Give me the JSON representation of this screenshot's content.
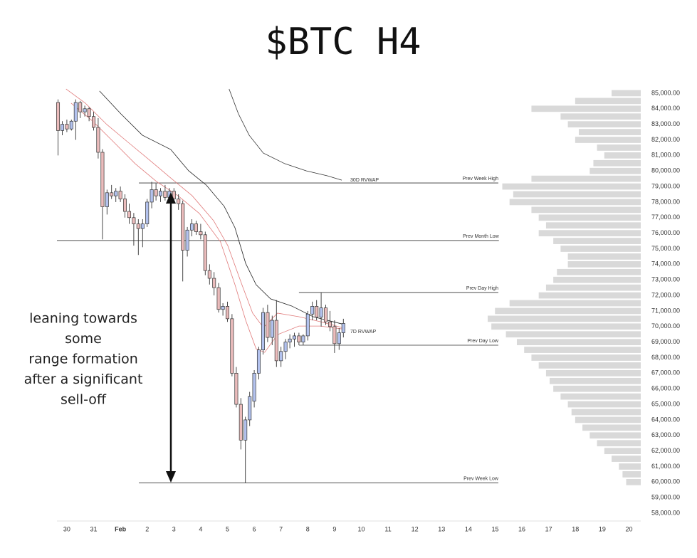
{
  "chart_data": {
    "type": "candlestick",
    "title": "$BTC H4",
    "annotation": [
      "leaning towards",
      "some",
      "range formation",
      "after a significant",
      "sell-off"
    ],
    "up_color": "#b3c2ee",
    "down_color": "#ebbcbc",
    "xlim": [
      -0.37,
      21.44
    ],
    "ylim": [
      57500,
      85500
    ],
    "xticks": [
      {
        "value": 0,
        "label": "30"
      },
      {
        "value": 1,
        "label": "31"
      },
      {
        "value": 2,
        "label": "Feb"
      },
      {
        "value": 3,
        "label": "2"
      },
      {
        "value": 4,
        "label": "3"
      },
      {
        "value": 5,
        "label": "4"
      },
      {
        "value": 6,
        "label": "5"
      },
      {
        "value": 7,
        "label": "6"
      },
      {
        "value": 8,
        "label": "7"
      },
      {
        "value": 9,
        "label": "8"
      },
      {
        "value": 10,
        "label": "9"
      },
      {
        "value": 11,
        "label": "10"
      },
      {
        "value": 12,
        "label": "11"
      },
      {
        "value": 13,
        "label": "12"
      },
      {
        "value": 14,
        "label": "13"
      },
      {
        "value": 15,
        "label": "14"
      },
      {
        "value": 16,
        "label": "15"
      },
      {
        "value": 17,
        "label": "16"
      },
      {
        "value": 18,
        "label": "17"
      },
      {
        "value": 19,
        "label": "18"
      },
      {
        "value": 20,
        "label": "19"
      },
      {
        "value": 21,
        "label": "20"
      }
    ],
    "yticks": [
      {
        "value": 85000,
        "label": "85,000.00"
      },
      {
        "value": 84000,
        "label": "84,000.00"
      },
      {
        "value": 83000,
        "label": "83,000.00"
      },
      {
        "value": 82000,
        "label": "82,000.00"
      },
      {
        "value": 81000,
        "label": "81,000.00"
      },
      {
        "value": 80000,
        "label": "80,000.00"
      },
      {
        "value": 79000,
        "label": "79,000.00"
      },
      {
        "value": 78000,
        "label": "78,000.00"
      },
      {
        "value": 77000,
        "label": "77,000.00"
      },
      {
        "value": 76000,
        "label": "76,000.00"
      },
      {
        "value": 75000,
        "label": "75,000.00"
      },
      {
        "value": 74000,
        "label": "74,000.00"
      },
      {
        "value": 73000,
        "label": "73,000.00"
      },
      {
        "value": 72000,
        "label": "72,000.00"
      },
      {
        "value": 71000,
        "label": "71,000.00"
      },
      {
        "value": 70000,
        "label": "70,000.00"
      },
      {
        "value": 69000,
        "label": "69,000.00"
      },
      {
        "value": 68000,
        "label": "68,000.00"
      },
      {
        "value": 67000,
        "label": "67,000.00"
      },
      {
        "value": 66000,
        "label": "66,000.00"
      },
      {
        "value": 65000,
        "label": "65,000.00"
      },
      {
        "value": 64000,
        "label": "64,000.00"
      },
      {
        "value": 63000,
        "label": "63,000.00"
      },
      {
        "value": 62000,
        "label": "62,000.00"
      },
      {
        "value": 61000,
        "label": "61,000.00"
      },
      {
        "value": 60000,
        "label": "60,000.00"
      },
      {
        "value": 59000,
        "label": "59,000.00"
      },
      {
        "value": 58000,
        "label": "58,000.00"
      }
    ],
    "x": [
      -0.33,
      -0.17,
      0,
      0.17,
      0.33,
      0.5,
      0.67,
      0.83,
      1,
      1.17,
      1.33,
      1.5,
      1.67,
      1.83,
      2,
      2.17,
      2.33,
      2.5,
      2.67,
      2.83,
      3,
      3.17,
      3.33,
      3.5,
      3.67,
      3.83,
      4,
      4.17,
      4.33,
      4.5,
      4.67,
      4.83,
      5,
      5.17,
      5.33,
      5.5,
      5.67,
      5.83,
      6,
      6.17,
      6.33,
      6.5,
      6.67,
      6.83,
      7,
      7.17,
      7.33,
      7.5,
      7.67,
      7.83,
      8,
      8.17,
      8.33,
      8.5,
      8.67,
      8.83,
      9,
      9.17,
      9.33,
      9.5,
      9.67,
      9.83,
      10,
      10.17,
      10.33
    ],
    "open": [
      84400,
      82600,
      83000,
      82700,
      83200,
      84400,
      83800,
      84000,
      83500,
      82800,
      81200,
      77700,
      78600,
      78400,
      78700,
      78200,
      77400,
      77000,
      76600,
      76300,
      76600,
      78000,
      78800,
      78400,
      78700,
      78300,
      78700,
      78200,
      77900,
      74900,
      76200,
      76600,
      76100,
      75900,
      73600,
      73100,
      72500,
      71100,
      71300,
      70500,
      67000,
      65000,
      62700,
      64000,
      65200,
      67000,
      68500,
      70900,
      69300,
      70400,
      67800,
      68400,
      69000,
      69200,
      69400,
      69000,
      69400,
      70800,
      71300,
      70600,
      71200,
      70300,
      70000,
      68900,
      69600
    ],
    "high": [
      84600,
      83200,
      83300,
      83300,
      84600,
      84500,
      84200,
      84100,
      83800,
      83400,
      81400,
      78800,
      79100,
      78900,
      79000,
      78500,
      77900,
      77300,
      76900,
      76900,
      78200,
      79300,
      79200,
      78900,
      79100,
      78900,
      78900,
      78500,
      78100,
      76400,
      76900,
      76800,
      76600,
      76100,
      74000,
      73500,
      72800,
      71500,
      71600,
      70800,
      67400,
      65400,
      64200,
      65800,
      67200,
      68700,
      71200,
      71400,
      70700,
      71700,
      68700,
      69200,
      69500,
      69600,
      69600,
      69500,
      71000,
      71600,
      71700,
      72200,
      71400,
      71000,
      70400,
      69900,
      70500
    ],
    "low": [
      81000,
      82300,
      82500,
      82600,
      82000,
      83400,
      83500,
      83200,
      82600,
      80800,
      75600,
      77200,
      78200,
      78000,
      78000,
      77000,
      76600,
      75200,
      74600,
      75100,
      76400,
      77600,
      78100,
      78000,
      78100,
      78000,
      77900,
      77500,
      72900,
      74500,
      75800,
      75900,
      75600,
      73300,
      72700,
      72000,
      70900,
      70700,
      70300,
      66800,
      64800,
      62100,
      59950,
      63600,
      64800,
      66600,
      68200,
      69000,
      68800,
      67400,
      67400,
      67900,
      68600,
      68700,
      68800,
      68800,
      69100,
      70400,
      70400,
      70000,
      70100,
      69700,
      68300,
      68500,
      69300
    ],
    "close": [
      82600,
      83000,
      82700,
      83200,
      84400,
      83800,
      84000,
      83500,
      82800,
      81200,
      77700,
      78600,
      78400,
      78700,
      78200,
      77400,
      77000,
      76600,
      76300,
      76600,
      78000,
      78800,
      78400,
      78700,
      78300,
      78700,
      78200,
      77900,
      74900,
      76200,
      76600,
      76100,
      75900,
      73600,
      73100,
      72500,
      71100,
      71300,
      70500,
      67000,
      65000,
      62700,
      64000,
      65500,
      67000,
      68500,
      70900,
      69300,
      70400,
      67800,
      68400,
      69000,
      69200,
      69400,
      69000,
      69400,
      70800,
      71300,
      70600,
      71200,
      70300,
      70000,
      68900,
      69600,
      70200
    ],
    "lines": [
      {
        "name": "30D RVWAP",
        "color": "#333333",
        "x": [
          6.06,
          6.41,
          6.81,
          7.34,
          8.14,
          8.94,
          9.73,
          10.27
        ],
        "values": [
          85270,
          83670,
          82300,
          81150,
          80470,
          80010,
          79690,
          79410
        ]
      },
      {
        "color": "#222222",
        "x": [
          1.22,
          2.02,
          2.82,
          3.88,
          4.55,
          5.21,
          5.88,
          6.28,
          6.68,
          7.07,
          7.61,
          8.4,
          9.2,
          10.27
        ],
        "values": [
          85140,
          83670,
          82300,
          81380,
          80010,
          79090,
          77720,
          76350,
          74060,
          72690,
          71780,
          71320,
          70630,
          70170
        ]
      },
      {
        "name": "7D RVWAP",
        "color": "#e07a7a",
        "x": [
          -0.03,
          0.69,
          1.49,
          2.29,
          3.09,
          3.88,
          4.68,
          5.48,
          6.01,
          6.54,
          6.94,
          7.34,
          7.87,
          8.67,
          9.47,
          10.27
        ],
        "values": [
          85270,
          84360,
          82990,
          81840,
          80700,
          79550,
          78410,
          76810,
          75210,
          72690,
          70860,
          69940,
          70860,
          70630,
          70310,
          69940
        ]
      },
      {
        "color": "#e07a7a",
        "x": [
          0.16,
          0.96,
          1.76,
          2.55,
          3.35,
          4.15,
          4.95,
          5.74,
          6.28,
          6.68,
          7.07,
          7.39,
          7.87,
          8.67,
          9.47,
          10.27
        ],
        "values": [
          84360,
          83210,
          81840,
          80470,
          79320,
          78410,
          77270,
          75440,
          72690,
          70400,
          68570,
          68340,
          69480,
          70030,
          70030,
          69850
        ]
      }
    ],
    "levels": [
      {
        "label": "Prev Week High",
        "value": 79230,
        "x": [
          2.69,
          16.12
        ]
      },
      {
        "label": "Prev Month Low",
        "value": 75530,
        "x": [
          -0.37,
          16.14
        ]
      },
      {
        "label": "Prev Day High",
        "value": 72190,
        "x": [
          8.67,
          16.12
        ]
      },
      {
        "label": "Prev Day Low",
        "value": 68800,
        "x": [
          8.67,
          16.12
        ]
      },
      {
        "label": "Prev Week Low",
        "value": 59950,
        "x": [
          2.69,
          16.12
        ]
      }
    ],
    "volume_profile": {
      "prices": [
        85000,
        84500,
        84000,
        83500,
        83000,
        82500,
        82000,
        81500,
        81000,
        80500,
        80000,
        79500,
        79000,
        78500,
        78000,
        77500,
        77000,
        76500,
        76000,
        75500,
        75000,
        74500,
        74000,
        73500,
        73000,
        72500,
        72000,
        71500,
        71000,
        70500,
        70000,
        69500,
        69000,
        68500,
        68000,
        67500,
        67000,
        66500,
        66000,
        65500,
        65000,
        64500,
        64000,
        63500,
        63000,
        62500,
        62000,
        61500,
        61000,
        60500,
        60000
      ],
      "values": [
        40,
        90,
        150,
        110,
        100,
        85,
        90,
        60,
        50,
        65,
        70,
        150,
        190,
        175,
        180,
        150,
        140,
        130,
        140,
        120,
        110,
        100,
        100,
        115,
        120,
        130,
        140,
        180,
        200,
        210,
        205,
        185,
        170,
        160,
        150,
        140,
        130,
        125,
        120,
        110,
        100,
        95,
        90,
        80,
        70,
        60,
        50,
        40,
        30,
        25,
        20
      ],
      "color": "#d9d9d9"
    }
  }
}
